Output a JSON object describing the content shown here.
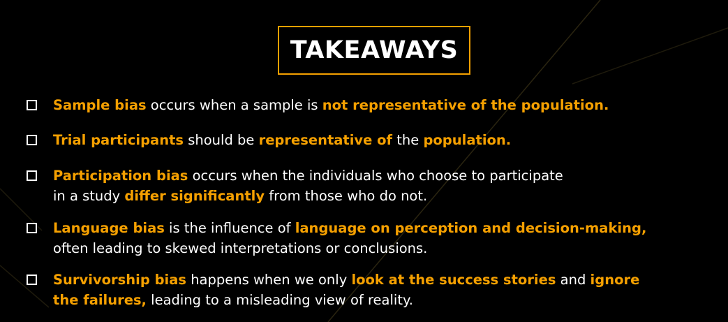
{
  "title": "TAKEAWAYS",
  "colors": {
    "accent": "#F5A000",
    "text": "#FFFFFF",
    "background": "#000000"
  },
  "items": [
    {
      "lines": [
        [
          {
            "text": "Sample bias",
            "hl": true
          },
          {
            "text": " occurs when a sample is ",
            "hl": false
          },
          {
            "text": "not representative of the population.",
            "hl": true
          }
        ]
      ]
    },
    {
      "lines": [
        [
          {
            "text": "Trial participants",
            "hl": true
          },
          {
            "text": " should be ",
            "hl": false
          },
          {
            "text": "representative of",
            "hl": true
          },
          {
            "text": " the ",
            "hl": false
          },
          {
            "text": "population.",
            "hl": true
          }
        ]
      ]
    },
    {
      "lines": [
        [
          {
            "text": "Participation bias",
            "hl": true
          },
          {
            "text": " occurs when the individuals who choose to participate",
            "hl": false
          }
        ],
        [
          {
            "text": "in a study ",
            "hl": false
          },
          {
            "text": "differ significantly",
            "hl": true
          },
          {
            "text": " from those who do not.",
            "hl": false
          }
        ]
      ]
    },
    {
      "lines": [
        [
          {
            "text": "Language bias",
            "hl": true
          },
          {
            "text": " is the influence of ",
            "hl": false
          },
          {
            "text": "language on perception and decision-making,",
            "hl": true
          }
        ],
        [
          {
            "text": "often leading to skewed interpretations or conclusions.",
            "hl": false
          }
        ]
      ]
    },
    {
      "lines": [
        [
          {
            "text": "Survivorship bias",
            "hl": true
          },
          {
            "text": " happens when we only ",
            "hl": false
          },
          {
            "text": "look at the success stories",
            "hl": true
          },
          {
            "text": " and ",
            "hl": false
          },
          {
            "text": "ignore",
            "hl": true
          }
        ],
        [
          {
            "text": "the failures,",
            "hl": true
          },
          {
            "text": " leading to a misleading view of reality.",
            "hl": false
          }
        ]
      ]
    }
  ]
}
